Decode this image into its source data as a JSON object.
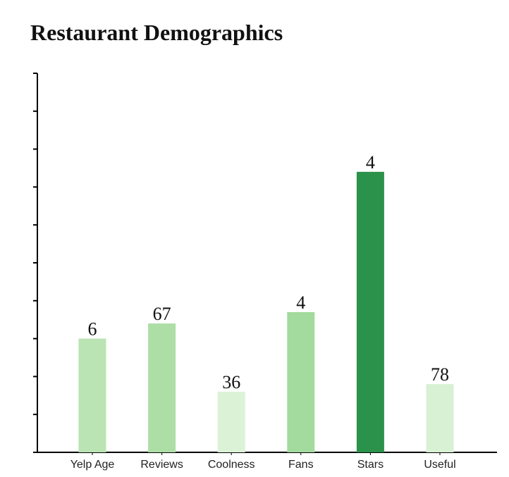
{
  "chart_data": {
    "type": "bar",
    "title": "Restaurant Demographics",
    "xlabel": "",
    "ylabel": "",
    "categories": [
      "Yelp Age",
      "Reviews",
      "Coolness",
      "Fans",
      "Stars",
      "Useful"
    ],
    "values": [
      0.3,
      0.34,
      0.16,
      0.37,
      0.74,
      0.18
    ],
    "data_labels": [
      "6",
      "67",
      "36",
      "4",
      "4",
      "78"
    ],
    "bar_colors": [
      "#bae4b3",
      "#addea6",
      "#dcf2d7",
      "#a3da9d",
      "#2a924a",
      "#d8f0d3"
    ],
    "ylim": [
      0,
      1
    ],
    "y_ticks": [
      0,
      0.1,
      0.2,
      0.3,
      0.4,
      0.5,
      0.6,
      0.7,
      0.8,
      0.9,
      1.0
    ],
    "y_tick_labels_shown": false,
    "grid": false
  }
}
